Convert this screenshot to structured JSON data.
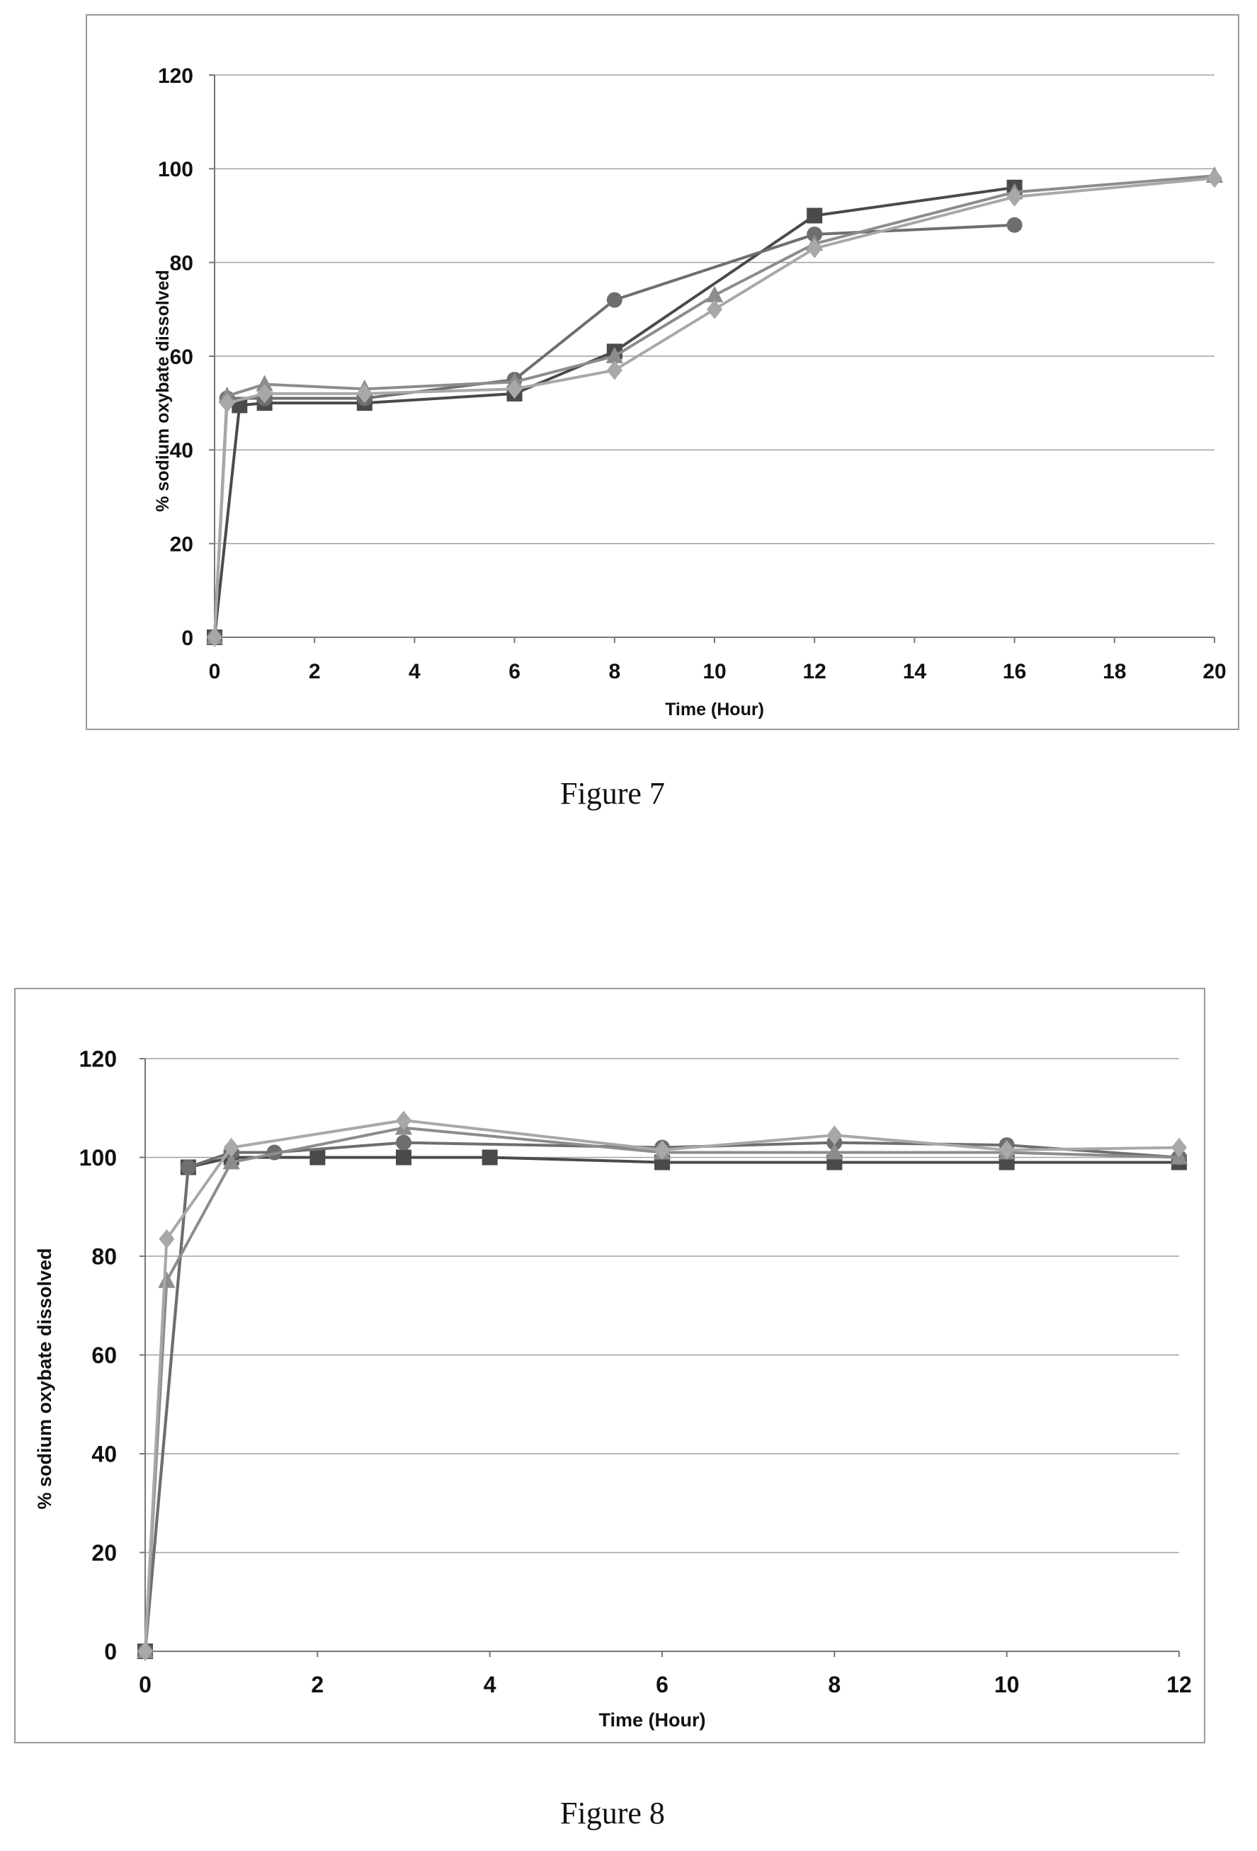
{
  "figures": [
    {
      "caption": "Figure 7"
    },
    {
      "caption": "Figure 8"
    }
  ],
  "chart_data": [
    {
      "type": "line",
      "title": "",
      "xlabel": "Time (Hour)",
      "ylabel": "% sodium oxybate dissolved",
      "xlim": [
        0,
        20
      ],
      "ylim": [
        0,
        120
      ],
      "xticks": [
        "0",
        "2",
        "4",
        "6",
        "8",
        "10",
        "12",
        "14",
        "16",
        "18",
        "20"
      ],
      "yticks": [
        "0",
        "20",
        "40",
        "60",
        "80",
        "100",
        "120"
      ],
      "grid": "horizontal",
      "series": [
        {
          "marker": "square",
          "color": "#4a4a4a",
          "x": [
            0,
            0.5,
            1,
            3,
            6,
            8,
            12,
            16
          ],
          "y": [
            0,
            49.5,
            50,
            50,
            52,
            61,
            90,
            96
          ]
        },
        {
          "marker": "circle",
          "color": "#6e6e6e",
          "x": [
            0,
            0.25,
            1,
            3,
            6,
            8,
            12,
            16
          ],
          "y": [
            0,
            51,
            51,
            51,
            55,
            72,
            86,
            88
          ]
        },
        {
          "marker": "triangle",
          "color": "#8c8c8c",
          "x": [
            0,
            0.25,
            1,
            3,
            6,
            8,
            10,
            12,
            16,
            20
          ],
          "y": [
            0,
            51.5,
            54,
            53,
            54.5,
            60,
            73,
            84,
            95,
            98.5
          ]
        },
        {
          "marker": "diamond",
          "color": "#a8a8a8",
          "x": [
            0,
            0.25,
            1,
            3,
            6,
            8,
            10,
            12,
            16,
            20
          ],
          "y": [
            0,
            50,
            52,
            52,
            53,
            57,
            70,
            83,
            94,
            98
          ]
        }
      ]
    },
    {
      "type": "line",
      "title": "",
      "xlabel": "Time (Hour)",
      "ylabel": "% sodium oxybate dissolved",
      "xlim": [
        0,
        12
      ],
      "ylim": [
        0,
        120
      ],
      "xticks": [
        "0",
        "2",
        "4",
        "6",
        "8",
        "10",
        "12"
      ],
      "yticks": [
        "0",
        "20",
        "40",
        "60",
        "80",
        "100",
        "120"
      ],
      "grid": "horizontal",
      "series": [
        {
          "marker": "square",
          "color": "#4a4a4a",
          "x": [
            0,
            0.5,
            1,
            2,
            3,
            4,
            6,
            8,
            10,
            12
          ],
          "y": [
            0,
            98,
            100,
            100,
            100,
            100,
            99,
            99,
            99,
            99
          ]
        },
        {
          "marker": "circle",
          "color": "#6e6e6e",
          "x": [
            0,
            0.5,
            1,
            1.5,
            3,
            6,
            8,
            10,
            12
          ],
          "y": [
            0,
            98,
            101,
            101,
            103,
            102,
            103,
            102.5,
            100
          ]
        },
        {
          "marker": "triangle",
          "color": "#8c8c8c",
          "x": [
            0,
            0.25,
            1,
            3,
            6,
            8,
            10,
            12
          ],
          "y": [
            0,
            75,
            99,
            106,
            101,
            101,
            101,
            100
          ]
        },
        {
          "marker": "diamond",
          "color": "#a8a8a8",
          "x": [
            0,
            0.25,
            1,
            3,
            6,
            8,
            10,
            12
          ],
          "y": [
            0,
            83.5,
            102,
            107.5,
            101.5,
            104.5,
            101.5,
            102
          ]
        }
      ]
    }
  ]
}
